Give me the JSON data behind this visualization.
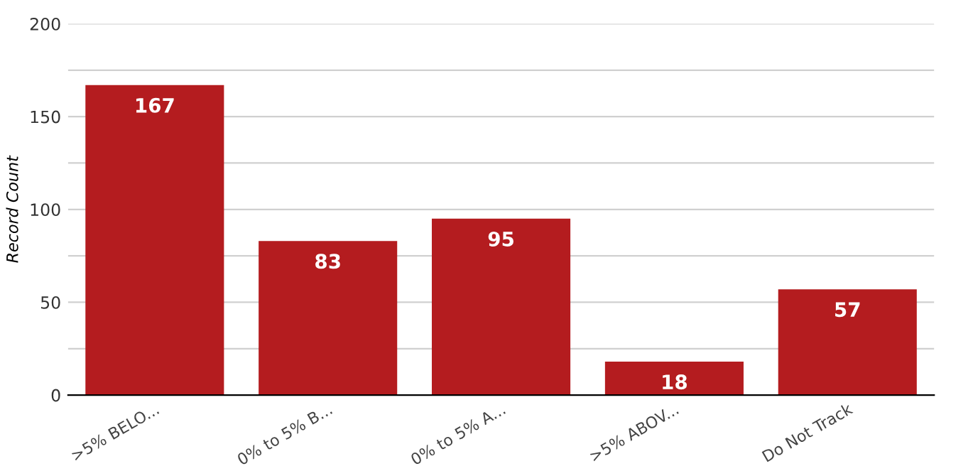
{
  "chart_data": {
    "type": "bar",
    "ylabel": "Record Count",
    "categories": [
      ">5% BELO...",
      "0% to 5% B...",
      "0% to 5% A...",
      ">5% ABOV...",
      "Do Not Track"
    ],
    "values": [
      167,
      83,
      95,
      18,
      57
    ],
    "color": "#b41c1f",
    "ylim": [
      0,
      200
    ],
    "yticks": [
      0,
      {
        "value": 25,
        "label": null
      },
      50,
      {
        "value": 75,
        "label": null
      },
      100,
      {
        "value": 125,
        "label": null
      },
      150,
      {
        "value": 175,
        "label": null
      },
      200
    ],
    "grid": "y",
    "data_labels": true
  }
}
